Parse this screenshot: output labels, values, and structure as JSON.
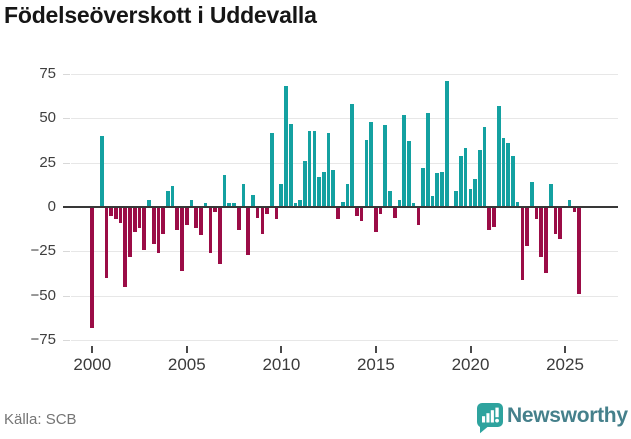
{
  "title": "Födelseöverskott i Uddevalla",
  "source": "Källa: SCB",
  "branding": {
    "name": "Newsworthy"
  },
  "colors": {
    "positive": "#14a1a1",
    "negative": "#9b0c46",
    "brand_icon": "#2ea39e",
    "brand_text": "#45808b",
    "gridline": "#e7e7e7",
    "zero_line": "#383838"
  },
  "chart_data": {
    "type": "bar",
    "title": "Födelseöverskott i Uddevalla",
    "xlabel": "",
    "ylabel": "",
    "frequency": "quarterly",
    "start_period": "2000 Q1",
    "end_period": "2025 Q4",
    "ylim": [
      -75,
      75
    ],
    "grid": "horizontal",
    "legend": "none",
    "y_ticks": [
      75,
      50,
      25,
      0,
      -25,
      -50,
      -75
    ],
    "x_tick_labels": [
      "2000",
      "2005",
      "2010",
      "2015",
      "2020",
      "2025"
    ],
    "values": [
      -68,
      0,
      40,
      -40,
      -5,
      -7,
      -9,
      -45,
      -28,
      -14,
      -12,
      -24,
      4,
      -21,
      -26,
      -15,
      9,
      12,
      -13,
      -36,
      -10,
      4,
      -12,
      -16,
      2,
      -26,
      -3,
      -32,
      18,
      2,
      2,
      -13,
      13,
      -27,
      7,
      -6,
      -15,
      -4,
      42,
      -7,
      13,
      68,
      47,
      2,
      4,
      26,
      43,
      43,
      17,
      20,
      42,
      21,
      -7,
      3,
      13,
      58,
      -5,
      -8,
      38,
      48,
      -14,
      -4,
      46,
      9,
      -6,
      4,
      52,
      37,
      2,
      -10,
      22,
      53,
      6,
      19,
      20,
      71,
      0,
      9,
      29,
      33,
      10,
      16,
      32,
      45,
      -13,
      -11,
      57,
      39,
      36,
      29,
      3,
      -41,
      -22,
      14,
      -7,
      -28,
      -37,
      13,
      -15,
      -18,
      0,
      4,
      -3,
      -49
    ]
  }
}
